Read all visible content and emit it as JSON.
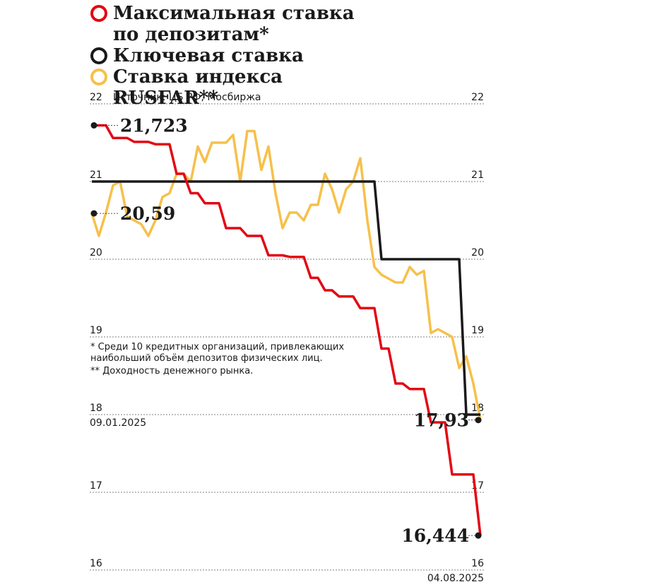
{
  "chart_data": {
    "type": "line",
    "source": "Источник: ЦБ РФ, Мосбиржа",
    "footnotes": [
      "* Среди 10 кредитных организаций, привлекающих наибольший объём депозитов физических лиц.",
      "** Доходность денежного рынка."
    ],
    "categories": [
      "09.01.2025",
      null,
      null,
      null,
      null,
      null,
      null,
      null,
      null,
      null,
      null,
      null,
      null,
      null,
      null,
      null,
      null,
      null,
      null,
      null,
      null,
      null,
      null,
      null,
      null,
      null,
      null,
      null,
      null,
      null,
      null,
      null,
      null,
      null,
      null,
      null,
      null,
      null,
      null,
      null,
      null,
      null,
      null,
      null,
      null,
      null,
      null,
      null,
      null,
      null,
      null,
      null,
      null,
      null,
      null,
      "04.08.2025"
    ],
    "ylim": [
      16,
      22
    ],
    "yticks": [
      16,
      17,
      18,
      19,
      20,
      21,
      22
    ],
    "grid": true,
    "series": [
      {
        "name": "Максимальная ставка по депозитам*",
        "color": "#e30613",
        "values": [
          21.723,
          21.723,
          21.723,
          21.56,
          21.56,
          21.56,
          21.51,
          21.51,
          21.51,
          21.48,
          21.48,
          21.48,
          21.1,
          21.1,
          20.85,
          20.85,
          20.72,
          20.72,
          20.72,
          20.4,
          20.4,
          20.4,
          20.3,
          20.3,
          20.3,
          20.05,
          20.05,
          20.05,
          20.03,
          20.03,
          20.03,
          19.76,
          19.76,
          19.6,
          19.6,
          19.52,
          19.52,
          19.52,
          19.37,
          19.37,
          19.37,
          18.85,
          18.85,
          18.4,
          18.4,
          18.33,
          18.33,
          18.33,
          17.9,
          17.9,
          17.9,
          17.23,
          17.23,
          17.23,
          17.23,
          16.444
        ],
        "value_labels": [
          "21,723",
          null,
          null,
          null,
          null,
          null,
          null,
          null,
          null,
          null,
          null,
          null,
          null,
          null,
          null,
          null,
          null,
          null,
          null,
          null,
          null,
          null,
          null,
          null,
          null,
          null,
          null,
          null,
          null,
          null,
          null,
          null,
          null,
          null,
          null,
          null,
          null,
          null,
          null,
          null,
          null,
          null,
          null,
          null,
          null,
          null,
          null,
          null,
          null,
          null,
          null,
          null,
          null,
          null,
          null,
          "16,444"
        ]
      },
      {
        "name": "Ключевая ставка",
        "color": "#1a1a1a",
        "values": [
          21,
          21,
          21,
          21,
          21,
          21,
          21,
          21,
          21,
          21,
          21,
          21,
          21,
          21,
          21,
          21,
          21,
          21,
          21,
          21,
          21,
          21,
          21,
          21,
          21,
          21,
          21,
          21,
          21,
          21,
          21,
          21,
          21,
          21,
          21,
          21,
          21,
          21,
          21,
          21,
          21,
          20,
          20,
          20,
          20,
          20,
          20,
          20,
          20,
          20,
          20,
          20,
          20,
          18,
          18,
          18
        ]
      },
      {
        "name": "Ставка индекса RUSFAR**",
        "color": "#f7c04a",
        "values": [
          20.59,
          20.3,
          20.6,
          20.95,
          21.0,
          20.55,
          20.5,
          20.45,
          20.3,
          20.5,
          20.8,
          20.85,
          21.1,
          21.1,
          21.0,
          21.45,
          21.25,
          21.5,
          21.5,
          21.5,
          21.6,
          21.0,
          21.65,
          21.65,
          21.15,
          21.45,
          20.85,
          20.4,
          20.6,
          20.6,
          20.5,
          20.7,
          20.7,
          21.1,
          20.9,
          20.6,
          20.9,
          21.0,
          21.3,
          20.5,
          19.9,
          19.8,
          19.75,
          19.7,
          19.7,
          19.9,
          19.8,
          19.85,
          19.05,
          19.1,
          19.05,
          19.0,
          18.6,
          18.75,
          18.4,
          17.93
        ],
        "value_labels": [
          "20,59",
          null,
          null,
          null,
          null,
          null,
          null,
          null,
          null,
          null,
          null,
          null,
          null,
          null,
          null,
          null,
          null,
          null,
          null,
          null,
          null,
          null,
          null,
          null,
          null,
          null,
          null,
          null,
          null,
          null,
          null,
          null,
          null,
          null,
          null,
          null,
          null,
          null,
          null,
          null,
          null,
          null,
          null,
          null,
          null,
          null,
          null,
          null,
          null,
          null,
          null,
          null,
          null,
          null,
          null,
          "17,93"
        ]
      }
    ]
  }
}
